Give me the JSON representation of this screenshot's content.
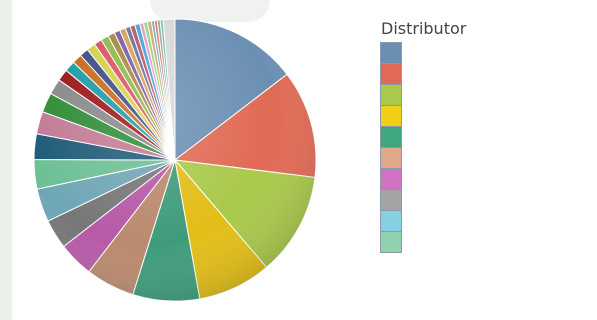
{
  "chart_data": {
    "type": "pie",
    "legend_title": "Distributor",
    "legend_placement": "right",
    "slices": [
      {
        "value": 13.0,
        "color": "#6b8fb3"
      },
      {
        "value": 11.0,
        "color": "#e06a55"
      },
      {
        "value": 10.5,
        "color": "#a9c94a"
      },
      {
        "value": 7.5,
        "color": "#e2be17"
      },
      {
        "value": 6.8,
        "color": "#3f9c7b"
      },
      {
        "value": 5.0,
        "color": "#b98a6e"
      },
      {
        "value": 3.6,
        "color": "#b75aa8"
      },
      {
        "value": 3.0,
        "color": "#777777"
      },
      {
        "value": 3.4,
        "color": "#6fa6b5"
      },
      {
        "value": 3.0,
        "color": "#6cbf95"
      },
      {
        "value": 2.6,
        "color": "#1f5a78"
      },
      {
        "value": 2.3,
        "color": "#c27a95"
      },
      {
        "value": 2.0,
        "color": "#2e8b34"
      },
      {
        "value": 1.6,
        "color": "#888888"
      },
      {
        "value": 1.2,
        "color": "#9b1515"
      },
      {
        "value": 1.1,
        "color": "#1c9aa6"
      },
      {
        "value": 1.0,
        "color": "#c76a1a"
      },
      {
        "value": 0.9,
        "color": "#3b4b86"
      },
      {
        "value": 0.9,
        "color": "#d4d04a"
      },
      {
        "value": 0.8,
        "color": "#d9535f"
      },
      {
        "value": 0.8,
        "color": "#8fb84a"
      },
      {
        "value": 0.7,
        "color": "#a8893c"
      },
      {
        "value": 0.6,
        "color": "#7b5ea7"
      },
      {
        "value": 0.6,
        "color": "#d6a35a"
      },
      {
        "value": 0.5,
        "color": "#6f6f9e"
      },
      {
        "value": 0.5,
        "color": "#b35a6a"
      },
      {
        "value": 0.5,
        "color": "#4aa3d6"
      },
      {
        "value": 0.4,
        "color": "#e3a0c8"
      },
      {
        "value": 0.4,
        "color": "#9ad48a"
      },
      {
        "value": 0.4,
        "color": "#c8b066"
      },
      {
        "value": 0.3,
        "color": "#7fa6cf"
      },
      {
        "value": 0.3,
        "color": "#d47f5e"
      },
      {
        "value": 0.3,
        "color": "#a0a0a0"
      },
      {
        "value": 0.3,
        "color": "#6ec4b8"
      },
      {
        "value": 1.2,
        "color": "#d8d8d8"
      }
    ],
    "legend": [
      {
        "color": "#6b8fb3"
      },
      {
        "color": "#e06a55"
      },
      {
        "color": "#a9c94a"
      },
      {
        "color": "#f2cf14"
      },
      {
        "color": "#3fa67f"
      },
      {
        "color": "#e0a98c"
      },
      {
        "color": "#cf73c2"
      },
      {
        "color": "#a4a4a4"
      },
      {
        "color": "#86d0e2"
      },
      {
        "color": "#8fd2b0"
      }
    ]
  }
}
